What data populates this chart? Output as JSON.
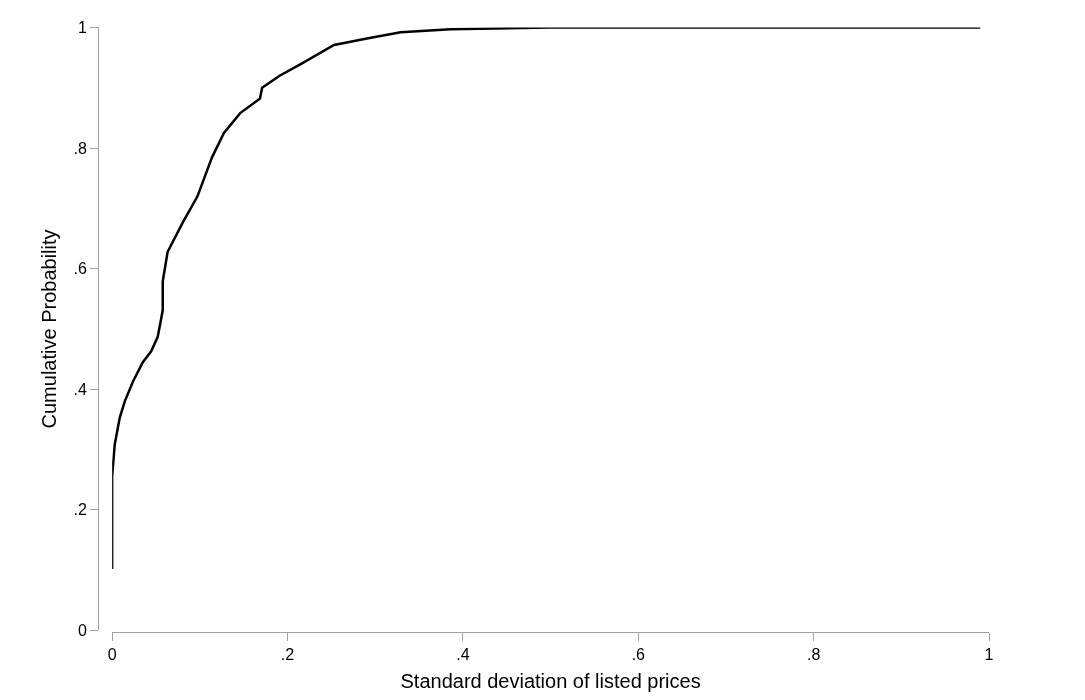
{
  "chart_data": {
    "type": "line",
    "xlabel": "Standard deviation of listed prices",
    "ylabel": "Cumulative Probability",
    "x": [
      0,
      0,
      0.003,
      0.0087,
      0.0144,
      0.0238,
      0.035,
      0.0445,
      0.052,
      0.0577,
      0.0577,
      0.0633,
      0.0803,
      0.0973,
      0.114,
      0.1275,
      0.146,
      0.1686,
      0.171,
      0.191,
      0.216,
      0.253,
      0.292,
      0.329,
      0.386,
      0.499,
      0.99
    ],
    "series": [
      {
        "color": "#000000",
        "values": [
          0.102,
          0.256,
          0.309,
          0.353,
          0.38,
          0.413,
          0.445,
          0.463,
          0.487,
          0.531,
          0.579,
          0.628,
          0.676,
          0.72,
          0.785,
          0.825,
          0.858,
          0.882,
          0.9,
          0.92,
          0.94,
          0.971,
          0.982,
          0.992,
          0.997,
          1.0,
          1.0
        ]
      }
    ],
    "xlim": [
      0,
      1
    ],
    "ylim": [
      0,
      1
    ],
    "xticks": [
      0,
      {
        "value": 0.2,
        "label": ".2"
      },
      {
        "value": 0.4,
        "label": ".4"
      },
      {
        "value": 0.6,
        "label": ".6"
      },
      {
        "value": 0.8,
        "label": ".8"
      },
      1
    ],
    "yticks": [
      0,
      {
        "value": 0.2,
        "label": ".2"
      },
      {
        "value": 0.4,
        "label": ".4"
      },
      {
        "value": 0.6,
        "label": ".6"
      },
      {
        "value": 0.8,
        "label": ".8"
      },
      1
    ],
    "grid": false,
    "marker": "none",
    "line_style": "solid"
  }
}
